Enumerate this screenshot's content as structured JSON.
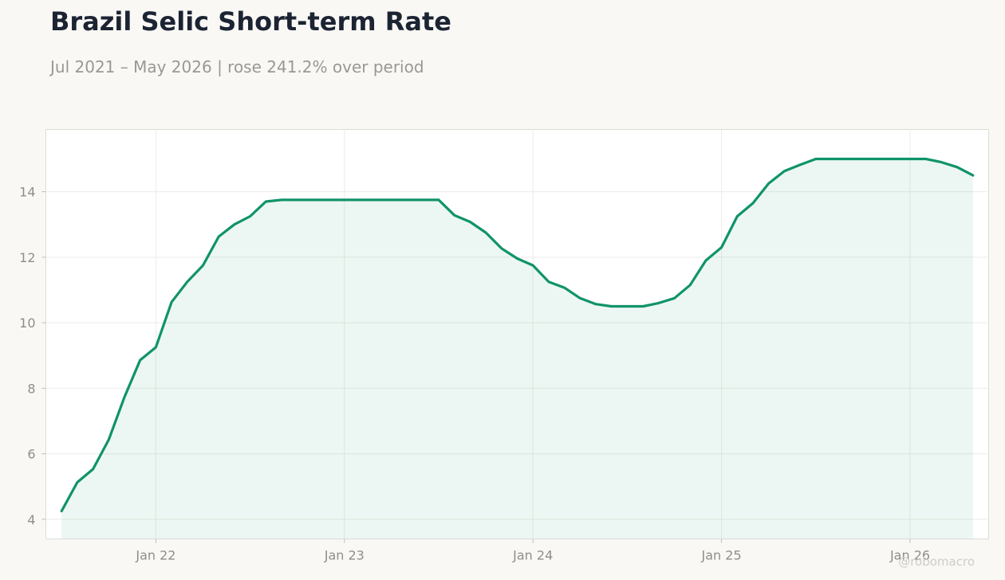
{
  "header": {
    "title": "Brazil Selic Short-term Rate",
    "subtitle": "Jul 2021 – May 2026 | rose 241.2% over period"
  },
  "watermark": "@robomacro",
  "colors": {
    "line": "#10936a",
    "fill": "#e3f2ed",
    "grid": "#ecebe7",
    "axis_text": "#8f8e8a"
  },
  "chart_data": {
    "type": "area",
    "title": "Brazil Selic Short-term Rate",
    "subtitle": "Jul 2021 – May 2026 | rose 241.2% over period",
    "xlabel": "",
    "ylabel": "",
    "ylim": [
      3.4,
      15.9
    ],
    "yticks": [
      4,
      6,
      8,
      10,
      12,
      14
    ],
    "xticks": [
      {
        "date": "2022-01",
        "label": "Jan 22"
      },
      {
        "date": "2023-01",
        "label": "Jan 23"
      },
      {
        "date": "2024-01",
        "label": "Jan 24"
      },
      {
        "date": "2025-01",
        "label": "Jan 25"
      },
      {
        "date": "2026-01",
        "label": "Jan 26"
      }
    ],
    "xlim": [
      "2021-06",
      "2026-06"
    ],
    "grid": true,
    "legend": "none",
    "series": [
      {
        "x": [
          "2021-07",
          "2021-08",
          "2021-09",
          "2021-10",
          "2021-11",
          "2021-12",
          "2022-01",
          "2022-02",
          "2022-03",
          "2022-04",
          "2022-05",
          "2022-06",
          "2022-07",
          "2022-08",
          "2022-09",
          "2022-10",
          "2022-11",
          "2022-12",
          "2023-01",
          "2023-02",
          "2023-03",
          "2023-04",
          "2023-05",
          "2023-06",
          "2023-07",
          "2023-08",
          "2023-09",
          "2023-10",
          "2023-11",
          "2023-12",
          "2024-01",
          "2024-02",
          "2024-03",
          "2024-04",
          "2024-05",
          "2024-06",
          "2024-07",
          "2024-08",
          "2024-09",
          "2024-10",
          "2024-11",
          "2024-12",
          "2025-01",
          "2025-02",
          "2025-03",
          "2025-04",
          "2025-05",
          "2025-06",
          "2025-07",
          "2025-08",
          "2025-09",
          "2025-10",
          "2025-11",
          "2025-12",
          "2026-01",
          "2026-02",
          "2026-03",
          "2026-04",
          "2026-05"
        ],
        "values": [
          4.25,
          5.13,
          5.53,
          6.43,
          7.73,
          8.86,
          9.25,
          10.63,
          11.25,
          11.75,
          12.63,
          13.0,
          13.25,
          13.7,
          13.75,
          13.75,
          13.75,
          13.75,
          13.75,
          13.75,
          13.75,
          13.75,
          13.75,
          13.75,
          13.75,
          13.28,
          13.08,
          12.75,
          12.27,
          11.96,
          11.75,
          11.25,
          11.07,
          10.75,
          10.57,
          10.5,
          10.5,
          10.5,
          10.6,
          10.75,
          11.15,
          11.9,
          12.3,
          13.25,
          13.65,
          14.25,
          14.63,
          14.82,
          15.0,
          15.0,
          15.0,
          15.0,
          15.0,
          15.0,
          15.0,
          15.0,
          14.9,
          14.75,
          14.5
        ]
      }
    ]
  }
}
